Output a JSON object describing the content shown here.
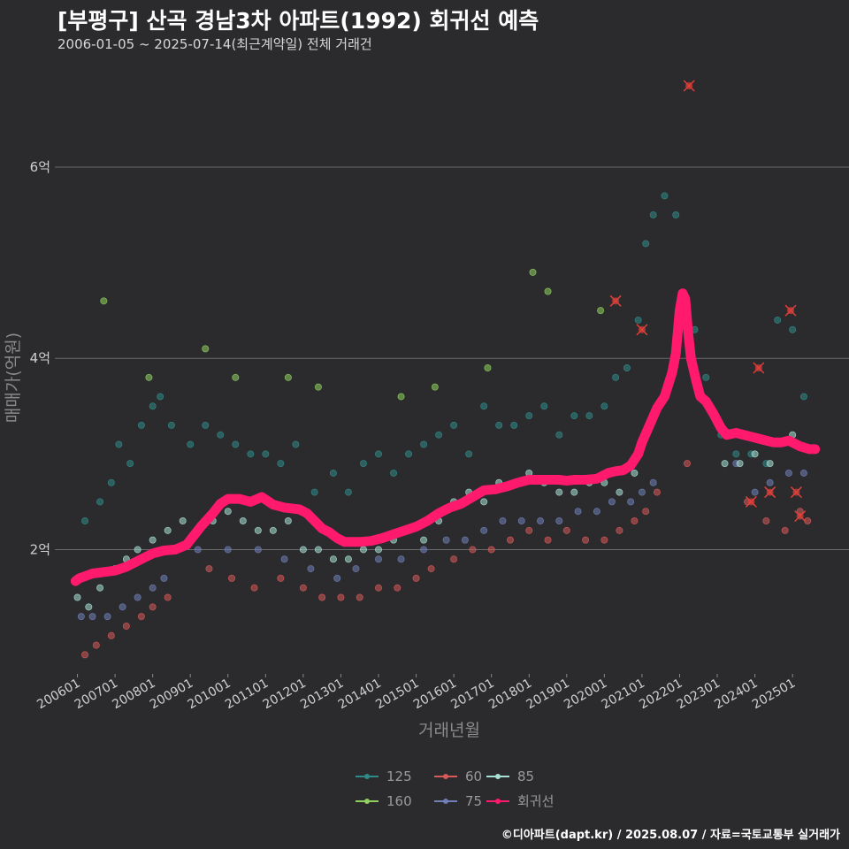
{
  "header": {
    "title": "[부평구] 산곡 경남3차 아파트(1992) 회귀선 예측",
    "subtitle": "2006-01-05 ~ 2025-07-14(최근계약일) 전체 거래건"
  },
  "footer": {
    "credit": "©디아파트(dapt.kr) / 2025.08.07 / 자료=국토교통부 실거래가"
  },
  "colors": {
    "background": "#2b2a2c",
    "gridline": "#6a6a6a",
    "s125": "#2f8a8a",
    "s160": "#8fcf60",
    "s60": "#d65a5a",
    "s75": "#6f7fb8",
    "s85": "#a7e0d4",
    "trend": "#ff1a6e"
  },
  "chart_data": {
    "type": "scatter",
    "title": "[부평구] 산곡 경남3차 아파트(1992) 회귀선 예측",
    "xlabel": "거래년월",
    "ylabel": "매매가(억원)",
    "ylim": [
      0.7,
      7.1
    ],
    "xlim": [
      2005.4,
      2026.5
    ],
    "grid": true,
    "legend_position": "bottom",
    "y_ticks": [
      {
        "value": 2,
        "label": "2억"
      },
      {
        "value": 4,
        "label": "4억"
      },
      {
        "value": 6,
        "label": "6억"
      }
    ],
    "x_ticks": [
      {
        "value": 2006,
        "label": "200601"
      },
      {
        "value": 2007,
        "label": "200701"
      },
      {
        "value": 2008,
        "label": "200801"
      },
      {
        "value": 2009,
        "label": "200901"
      },
      {
        "value": 2010,
        "label": "201001"
      },
      {
        "value": 2011,
        "label": "201101"
      },
      {
        "value": 2012,
        "label": "201201"
      },
      {
        "value": 2013,
        "label": "201301"
      },
      {
        "value": 2014,
        "label": "201401"
      },
      {
        "value": 2015,
        "label": "201501"
      },
      {
        "value": 2016,
        "label": "201601"
      },
      {
        "value": 2017,
        "label": "201701"
      },
      {
        "value": 2018,
        "label": "201801"
      },
      {
        "value": 2019,
        "label": "201901"
      },
      {
        "value": 2020,
        "label": "202001"
      },
      {
        "value": 2021,
        "label": "202101"
      },
      {
        "value": 2022,
        "label": "202201"
      },
      {
        "value": 2023,
        "label": "202301"
      },
      {
        "value": 2024,
        "label": "202401"
      },
      {
        "value": 2025,
        "label": "202501"
      }
    ],
    "legend": [
      {
        "name": "125",
        "key": "s125"
      },
      {
        "name": "60",
        "key": "s60"
      },
      {
        "name": "85",
        "key": "s85"
      },
      {
        "name": "160",
        "key": "s160"
      },
      {
        "name": "75",
        "key": "s75"
      },
      {
        "name": "회귀선",
        "key": "trend"
      }
    ],
    "series": [
      {
        "name": "125",
        "key": "s125",
        "x": [
          2006.2,
          2006.6,
          2006.9,
          2007.1,
          2007.4,
          2007.7,
          2008.0,
          2008.2,
          2008.5,
          2009.0,
          2009.4,
          2009.8,
          2010.2,
          2010.6,
          2011.0,
          2011.4,
          2011.8,
          2012.3,
          2012.8,
          2013.2,
          2013.6,
          2014.0,
          2014.4,
          2014.8,
          2015.2,
          2015.6,
          2016.0,
          2016.4,
          2016.8,
          2017.2,
          2017.6,
          2018.0,
          2018.4,
          2018.8,
          2019.2,
          2019.6,
          2020.0,
          2020.3,
          2020.6,
          2020.9,
          2021.1,
          2021.3,
          2021.6,
          2021.9,
          2022.4,
          2022.7,
          2023.1,
          2023.5,
          2023.9,
          2024.3,
          2024.6,
          2025.0,
          2025.3
        ],
        "y": [
          2.3,
          2.5,
          2.7,
          3.1,
          2.9,
          3.3,
          3.5,
          3.6,
          3.3,
          3.1,
          3.3,
          3.2,
          3.1,
          3.0,
          3.0,
          2.9,
          3.1,
          2.6,
          2.8,
          2.6,
          2.9,
          3.0,
          2.8,
          3.0,
          3.1,
          3.2,
          3.3,
          3.0,
          3.5,
          3.3,
          3.3,
          3.4,
          3.5,
          3.2,
          3.4,
          3.4,
          3.5,
          3.8,
          3.9,
          4.4,
          5.2,
          5.5,
          5.7,
          5.5,
          4.3,
          3.8,
          3.2,
          3.0,
          3.0,
          2.9,
          4.4,
          4.3,
          3.6
        ]
      },
      {
        "name": "160",
        "key": "s160",
        "x": [
          2006.7,
          2007.9,
          2009.4,
          2010.2,
          2011.6,
          2012.4,
          2014.6,
          2015.5,
          2016.9,
          2018.1,
          2018.5,
          2019.9
        ],
        "y": [
          4.6,
          3.8,
          4.1,
          3.8,
          3.8,
          3.7,
          3.6,
          3.7,
          3.9,
          4.9,
          4.7,
          4.5
        ]
      },
      {
        "name": "60",
        "key": "s60",
        "x": [
          2006.2,
          2006.5,
          2006.9,
          2007.3,
          2007.7,
          2008.0,
          2008.4,
          2009.5,
          2010.1,
          2010.7,
          2011.4,
          2012.0,
          2012.5,
          2013.0,
          2013.5,
          2014.0,
          2014.5,
          2015.0,
          2015.4,
          2016.0,
          2016.5,
          2017.0,
          2017.5,
          2018.0,
          2018.5,
          2019.0,
          2019.5,
          2020.0,
          2020.4,
          2020.8,
          2021.1,
          2021.4,
          2022.2,
          2023.8,
          2024.3,
          2024.8,
          2025.2,
          2025.4
        ],
        "y": [
          0.9,
          1.0,
          1.1,
          1.2,
          1.3,
          1.4,
          1.5,
          1.8,
          1.7,
          1.6,
          1.7,
          1.6,
          1.5,
          1.5,
          1.5,
          1.6,
          1.6,
          1.7,
          1.8,
          1.9,
          2.0,
          2.0,
          2.1,
          2.2,
          2.1,
          2.2,
          2.1,
          2.1,
          2.2,
          2.3,
          2.4,
          2.6,
          2.9,
          2.5,
          2.3,
          2.2,
          2.4,
          2.3
        ]
      },
      {
        "name": "75",
        "key": "s75",
        "x": [
          2006.1,
          2006.4,
          2006.8,
          2007.2,
          2007.6,
          2008.0,
          2008.3,
          2009.2,
          2010.0,
          2010.8,
          2011.5,
          2012.2,
          2012.9,
          2013.4,
          2014.0,
          2014.6,
          2015.2,
          2015.8,
          2016.3,
          2016.8,
          2017.3,
          2017.8,
          2018.3,
          2018.8,
          2019.3,
          2019.8,
          2020.2,
          2020.7,
          2021.0,
          2021.3,
          2023.5,
          2024.0,
          2024.4,
          2024.9,
          2025.3
        ],
        "y": [
          1.3,
          1.3,
          1.3,
          1.4,
          1.5,
          1.6,
          1.7,
          2.0,
          2.0,
          2.0,
          1.9,
          1.8,
          1.7,
          1.8,
          1.9,
          1.9,
          2.0,
          2.1,
          2.1,
          2.2,
          2.3,
          2.3,
          2.3,
          2.3,
          2.4,
          2.4,
          2.5,
          2.5,
          2.6,
          2.7,
          2.9,
          2.6,
          2.7,
          2.8,
          2.8
        ]
      },
      {
        "name": "85",
        "key": "s85",
        "x": [
          2006.0,
          2006.3,
          2006.6,
          2007.0,
          2007.3,
          2007.6,
          2008.0,
          2008.4,
          2008.8,
          2009.2,
          2009.6,
          2010.0,
          2010.4,
          2010.8,
          2011.2,
          2011.6,
          2012.0,
          2012.4,
          2012.8,
          2013.2,
          2013.6,
          2014.0,
          2014.4,
          2014.8,
          2015.2,
          2015.6,
          2016.0,
          2016.4,
          2016.8,
          2017.2,
          2017.6,
          2018.0,
          2018.4,
          2018.8,
          2019.2,
          2019.6,
          2020.0,
          2020.4,
          2020.8,
          2023.2,
          2023.6,
          2024.0,
          2024.4,
          2025.0
        ],
        "y": [
          1.5,
          1.4,
          1.6,
          1.8,
          1.9,
          2.0,
          2.1,
          2.2,
          2.3,
          2.2,
          2.3,
          2.4,
          2.3,
          2.2,
          2.2,
          2.3,
          2.0,
          2.0,
          1.9,
          1.9,
          2.0,
          2.0,
          2.1,
          2.2,
          2.1,
          2.3,
          2.5,
          2.6,
          2.5,
          2.7,
          2.7,
          2.8,
          2.7,
          2.6,
          2.6,
          2.7,
          2.7,
          2.6,
          2.8,
          2.9,
          2.9,
          3.0,
          2.9,
          3.2
        ]
      },
      {
        "name": "회귀선",
        "key": "trend",
        "x": [
          2005.95,
          2006.05,
          2006.4,
          2006.8,
          2007.0,
          2007.3,
          2007.6,
          2007.8,
          2008.0,
          2008.3,
          2008.6,
          2008.9,
          2009.1,
          2009.3,
          2009.6,
          2009.8,
          2010.0,
          2010.3,
          2010.6,
          2010.9,
          2011.2,
          2011.5,
          2011.7,
          2011.9,
          2012.1,
          2012.3,
          2012.5,
          2012.7,
          2012.9,
          2013.1,
          2013.3,
          2013.5,
          2013.8,
          2014.1,
          2014.4,
          2014.7,
          2015.0,
          2015.3,
          2015.6,
          2015.9,
          2016.2,
          2016.5,
          2016.8,
          2017.1,
          2017.4,
          2017.7,
          2018.0,
          2018.4,
          2018.8,
          2019.0,
          2019.2,
          2019.5,
          2019.8,
          2020.1,
          2020.3,
          2020.5,
          2020.7,
          2020.9,
          2021.0,
          2021.2,
          2021.4,
          2021.6,
          2021.8,
          2021.9,
          2022.0,
          2022.08,
          2022.15,
          2022.22,
          2022.3,
          2022.45,
          2022.55,
          2022.7,
          2022.9,
          2023.1,
          2023.25,
          2023.5,
          2023.7,
          2023.9,
          2024.1,
          2024.3,
          2024.5,
          2024.7,
          2024.9,
          2025.2,
          2025.45,
          2025.6
        ],
        "y": [
          1.67,
          1.7,
          1.75,
          1.77,
          1.78,
          1.82,
          1.88,
          1.92,
          1.96,
          1.99,
          2.0,
          2.05,
          2.15,
          2.25,
          2.38,
          2.48,
          2.53,
          2.53,
          2.5,
          2.55,
          2.47,
          2.44,
          2.43,
          2.42,
          2.38,
          2.3,
          2.22,
          2.18,
          2.12,
          2.08,
          2.08,
          2.08,
          2.09,
          2.12,
          2.16,
          2.2,
          2.24,
          2.3,
          2.38,
          2.44,
          2.48,
          2.55,
          2.62,
          2.63,
          2.66,
          2.7,
          2.73,
          2.73,
          2.73,
          2.72,
          2.73,
          2.73,
          2.74,
          2.8,
          2.82,
          2.83,
          2.88,
          3.0,
          3.12,
          3.3,
          3.48,
          3.6,
          3.85,
          4.05,
          4.5,
          4.68,
          4.62,
          4.3,
          4.0,
          3.75,
          3.6,
          3.55,
          3.42,
          3.27,
          3.2,
          3.22,
          3.2,
          3.18,
          3.16,
          3.14,
          3.12,
          3.12,
          3.14,
          3.08,
          3.05,
          3.05
        ]
      }
    ],
    "flagged_points": {
      "x": [
        2020.3,
        2021.0,
        2022.25,
        2023.9,
        2024.1,
        2024.4,
        2024.95,
        2025.1,
        2025.2
      ],
      "y": [
        4.6,
        4.3,
        6.85,
        2.5,
        3.9,
        2.6,
        4.5,
        2.6,
        2.35
      ]
    }
  }
}
